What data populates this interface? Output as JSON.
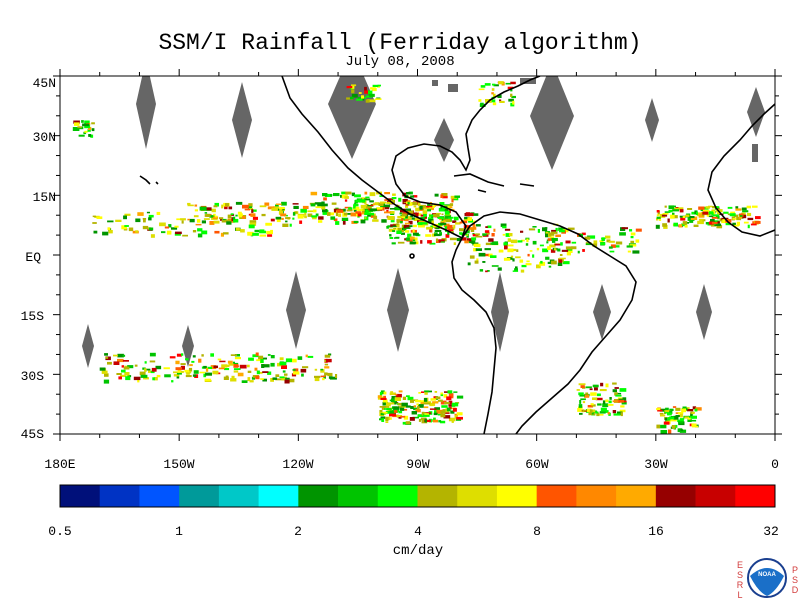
{
  "title": "SSM/I Rainfall (Ferriday algorithm)",
  "subtitle": "July 08, 2008",
  "map": {
    "lon_range": [
      -180,
      0
    ],
    "lat_range": [
      -45,
      45
    ],
    "lat_ticks": [
      "45N",
      "30N",
      "15N",
      "EQ",
      "15S",
      "30S",
      "45S"
    ],
    "lon_ticks": [
      "180E",
      "150W",
      "120W",
      "90W",
      "60W",
      "30W",
      "0"
    ],
    "missing_data_color": "#666666",
    "coastline_color": "#000000"
  },
  "colorbar": {
    "colors": [
      "#00107a",
      "#0033c4",
      "#0055ff",
      "#009a9a",
      "#00c8c8",
      "#00ffff",
      "#009400",
      "#00c400",
      "#00ff00",
      "#b4b400",
      "#dede00",
      "#ffff00",
      "#ff5500",
      "#ff8800",
      "#ffaa00",
      "#960000",
      "#c80000",
      "#ff0000"
    ],
    "tick_labels": [
      "0.5",
      "1",
      "2",
      "4",
      "8",
      "16",
      "32"
    ],
    "units": "cm/day"
  },
  "logo": {
    "left_letters": [
      "E",
      "S",
      "R",
      "L"
    ],
    "right_letters": [
      "P",
      "S",
      "D"
    ],
    "center_text": "NOAA"
  }
}
